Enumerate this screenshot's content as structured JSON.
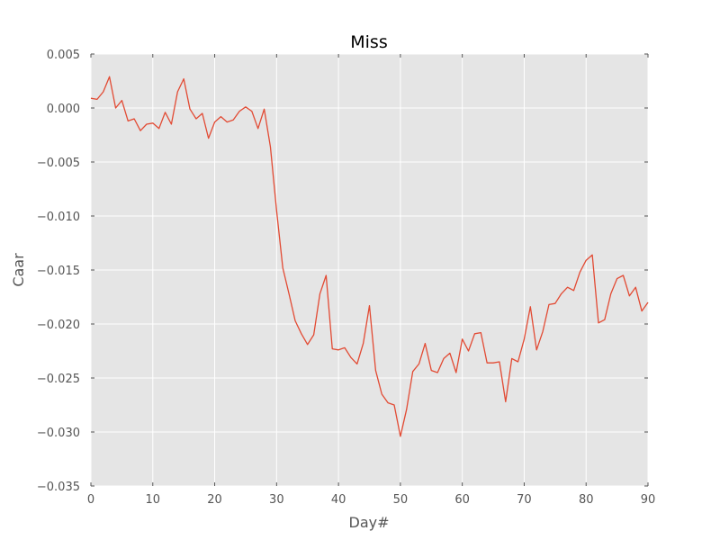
{
  "chart_data": {
    "type": "line",
    "title": "Miss",
    "xlabel": "Day#",
    "ylabel": "Caar",
    "xlim": [
      0,
      90
    ],
    "ylim": [
      -0.035,
      0.005
    ],
    "grid": true,
    "legend": "none",
    "x_ticks": [
      0,
      10,
      20,
      30,
      40,
      50,
      60,
      70,
      80,
      90
    ],
    "x_tick_labels": [
      "0",
      "10",
      "20",
      "30",
      "40",
      "50",
      "60",
      "70",
      "80",
      "90"
    ],
    "y_ticks": [
      0.005,
      0.0,
      -0.005,
      -0.01,
      -0.015,
      -0.02,
      -0.025,
      -0.03,
      -0.035
    ],
    "y_tick_labels": [
      "0.005",
      "0.000",
      "−0.005",
      "−0.010",
      "−0.015",
      "−0.020",
      "−0.025",
      "−0.030",
      "−0.035"
    ],
    "colors": {
      "line": "#E24A33",
      "plot_background": "#E5E5E5",
      "grid": "#FFFFFF"
    },
    "series": [
      {
        "x": [
          0,
          1,
          2,
          3,
          4,
          5,
          6,
          7,
          8,
          9,
          10,
          11,
          12,
          13,
          14,
          15,
          16,
          17,
          18,
          19,
          20,
          21,
          22,
          23,
          24,
          25,
          26,
          27,
          28,
          29,
          30,
          31,
          32,
          33,
          34,
          35,
          36,
          37,
          38,
          39,
          40,
          41,
          42,
          43,
          44,
          45,
          46,
          47,
          48,
          49,
          50,
          51,
          52,
          53,
          54,
          55,
          56,
          57,
          58,
          59,
          60,
          61,
          62,
          63,
          64,
          65,
          66,
          67,
          68,
          69,
          70,
          71,
          72,
          73,
          74,
          75,
          76,
          77,
          78,
          79,
          80,
          81,
          82,
          83,
          84,
          85,
          86,
          87,
          88,
          89,
          90
        ],
        "values": [
          0.0009,
          0.0008,
          0.0015,
          0.0029,
          0.0,
          0.0007,
          -0.0012,
          -0.001,
          -0.0021,
          -0.0015,
          -0.0014,
          -0.0019,
          -0.0004,
          -0.0015,
          0.0015,
          0.0027,
          -0.0001,
          -0.001,
          -0.0005,
          -0.0028,
          -0.0013,
          -0.0008,
          -0.0013,
          -0.0011,
          -0.0003,
          0.0001,
          -0.0003,
          -0.0019,
          -0.0001,
          -0.0036,
          -0.0095,
          -0.0148,
          -0.0172,
          -0.0197,
          -0.0209,
          -0.0219,
          -0.021,
          -0.0172,
          -0.0155,
          -0.0223,
          -0.0224,
          -0.0222,
          -0.0231,
          -0.0237,
          -0.0218,
          -0.0183,
          -0.0243,
          -0.0265,
          -0.0273,
          -0.0275,
          -0.0304,
          -0.0279,
          -0.0244,
          -0.0237,
          -0.0218,
          -0.0243,
          -0.0245,
          -0.0232,
          -0.0227,
          -0.0245,
          -0.0214,
          -0.0225,
          -0.0209,
          -0.0208,
          -0.0236,
          -0.0236,
          -0.0235,
          -0.0272,
          -0.0232,
          -0.0235,
          -0.0214,
          -0.0184,
          -0.0224,
          -0.0207,
          -0.0182,
          -0.0181,
          -0.0172,
          -0.0166,
          -0.0169,
          -0.0152,
          -0.0141,
          -0.0136,
          -0.0199,
          -0.0196,
          -0.0172,
          -0.0158,
          -0.0155,
          -0.0174,
          -0.0166,
          -0.0188,
          -0.018
        ]
      }
    ]
  }
}
